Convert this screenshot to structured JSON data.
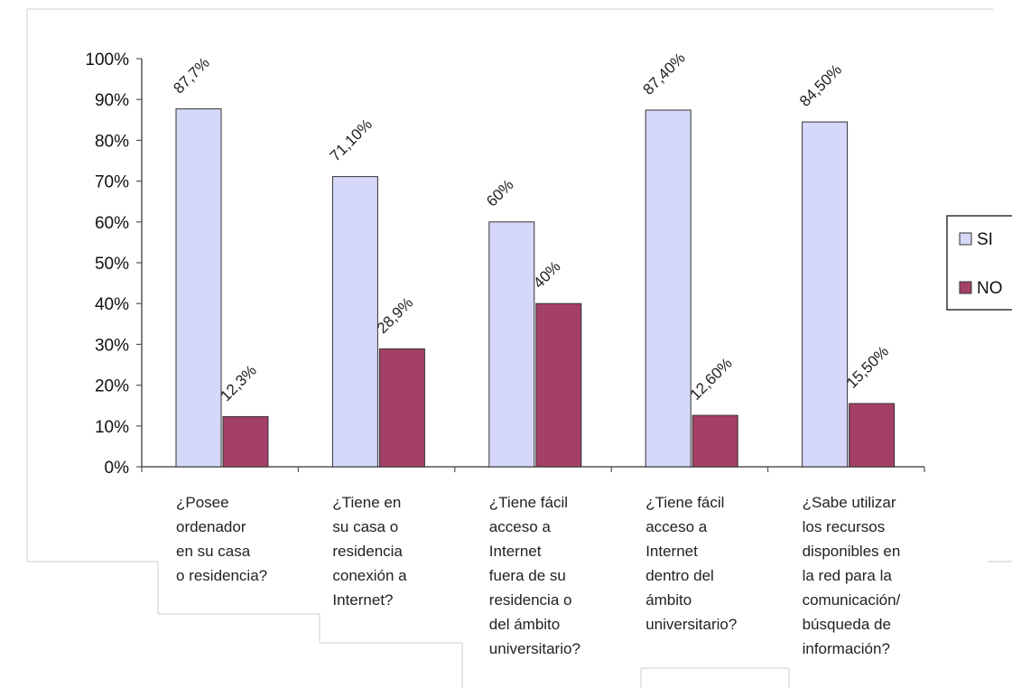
{
  "chart_data": {
    "type": "bar",
    "categories": [
      [
        "¿Posee",
        "ordenador",
        "en su casa",
        "o residencia?"
      ],
      [
        "¿Tiene en",
        "su casa o",
        "residencia",
        "conexión a",
        "Internet?"
      ],
      [
        "¿Tiene fácil",
        "acceso a",
        "Internet",
        "fuera de su",
        "residencia o",
        "del ámbito",
        "universitario?"
      ],
      [
        "¿Tiene fácil",
        "acceso a",
        "Internet",
        "dentro del",
        "ámbito",
        "universitario?"
      ],
      [
        "¿Sabe utilizar",
        "los recursos",
        "disponibles en",
        "la red para la",
        "comunicación/",
        "búsqueda de",
        "información?"
      ]
    ],
    "series": [
      {
        "name": "SI",
        "color": "#d6d8fa",
        "values": [
          87.7,
          71.1,
          60,
          87.4,
          84.5
        ],
        "labels": [
          "87,7%",
          "71,10%",
          "60%",
          "87,40%",
          "84,50%"
        ]
      },
      {
        "name": "NO",
        "color": "#a43f68",
        "values": [
          12.3,
          28.9,
          40,
          12.6,
          15.5
        ],
        "labels": [
          "12,3%",
          "28,9%",
          "40%",
          "12,60%",
          "15,50%"
        ]
      }
    ],
    "yticks": [
      "0%",
      "10%",
      "20%",
      "30%",
      "40%",
      "50%",
      "60%",
      "70%",
      "80%",
      "90%",
      "100%"
    ],
    "ylim": [
      0,
      100
    ],
    "legend": {
      "position": "right",
      "visible_text": [
        "SI",
        "NO"
      ]
    },
    "grid": false
  }
}
